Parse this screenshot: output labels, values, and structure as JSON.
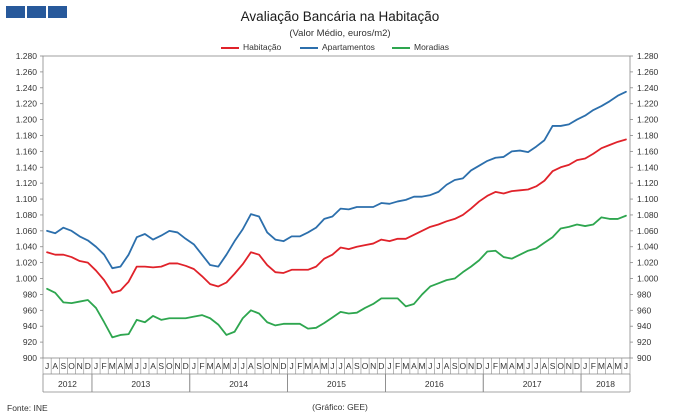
{
  "logo_color": "#27599b",
  "footer": {
    "source": "Fonte: INE",
    "credit": "(Gráfico: GEE)"
  },
  "chart_data": {
    "type": "line",
    "title": "Avaliação Bancária na Habitação",
    "subtitle": "(Valor Médio, euros/m2)",
    "ylim": [
      900,
      1280
    ],
    "yticks": [
      900,
      920,
      940,
      960,
      980,
      1000,
      1020,
      1040,
      1060,
      1080,
      1100,
      1120,
      1140,
      1160,
      1180,
      1200,
      1220,
      1240,
      1260,
      1280
    ],
    "ytick_labels": [
      "900",
      "920",
      "940",
      "960",
      "980",
      "1.000",
      "1.020",
      "1.040",
      "1.060",
      "1.080",
      "1.100",
      "1.120",
      "1.140",
      "1.160",
      "1.180",
      "1.200",
      "1.220",
      "1.240",
      "1.260",
      "1.280"
    ],
    "months": [
      "J",
      "A",
      "S",
      "O",
      "N",
      "D",
      "J",
      "F",
      "M",
      "A",
      "M",
      "J",
      "J",
      "A",
      "S",
      "O",
      "N",
      "D",
      "J",
      "F",
      "M",
      "A",
      "M",
      "J",
      "J",
      "A",
      "S",
      "O",
      "N",
      "D",
      "J",
      "F",
      "M",
      "A",
      "M",
      "J",
      "J",
      "A",
      "S",
      "O",
      "N",
      "D",
      "J",
      "F",
      "M",
      "A",
      "M",
      "J",
      "J",
      "A",
      "S",
      "O",
      "N",
      "D",
      "J",
      "F",
      "M",
      "A",
      "M",
      "J",
      "J",
      "A",
      "S",
      "O",
      "N",
      "D",
      "J",
      "F",
      "M",
      "A",
      "M",
      "J"
    ],
    "years": [
      {
        "label": "2012",
        "start": 0,
        "count": 6
      },
      {
        "label": "2013",
        "start": 6,
        "count": 12
      },
      {
        "label": "2014",
        "start": 18,
        "count": 12
      },
      {
        "label": "2015",
        "start": 30,
        "count": 12
      },
      {
        "label": "2016",
        "start": 42,
        "count": 12
      },
      {
        "label": "2017",
        "start": 54,
        "count": 12
      },
      {
        "label": "2018",
        "start": 66,
        "count": 6
      }
    ],
    "series": [
      {
        "name": "Habitação",
        "color": "#e0222a",
        "values": [
          1033,
          1030,
          1030,
          1027,
          1022,
          1020,
          1010,
          998,
          982,
          985,
          996,
          1015,
          1015,
          1014,
          1015,
          1019,
          1019,
          1016,
          1012,
          1003,
          993,
          990,
          995,
          1006,
          1018,
          1033,
          1030,
          1017,
          1008,
          1007,
          1011,
          1011,
          1011,
          1015,
          1025,
          1030,
          1039,
          1037,
          1040,
          1042,
          1044,
          1049,
          1047,
          1050,
          1050,
          1055,
          1060,
          1065,
          1068,
          1072,
          1075,
          1080,
          1088,
          1097,
          1104,
          1109,
          1107,
          1110,
          1111,
          1112,
          1116,
          1123,
          1135,
          1140,
          1143,
          1149,
          1151,
          1157,
          1164,
          1168,
          1172,
          1175
        ]
      },
      {
        "name": "Apartamentos",
        "color": "#2c6fac",
        "values": [
          1060,
          1057,
          1064,
          1060,
          1053,
          1048,
          1040,
          1030,
          1013,
          1015,
          1030,
          1052,
          1056,
          1049,
          1054,
          1060,
          1058,
          1050,
          1043,
          1030,
          1017,
          1015,
          1030,
          1047,
          1062,
          1081,
          1078,
          1058,
          1049,
          1047,
          1053,
          1053,
          1058,
          1064,
          1075,
          1078,
          1088,
          1087,
          1090,
          1090,
          1090,
          1095,
          1094,
          1097,
          1099,
          1103,
          1103,
          1105,
          1109,
          1118,
          1124,
          1126,
          1136,
          1142,
          1148,
          1152,
          1153,
          1160,
          1161,
          1159,
          1166,
          1174,
          1192,
          1192,
          1194,
          1200,
          1205,
          1212,
          1217,
          1223,
          1230,
          1235
        ]
      },
      {
        "name": "Moradias",
        "color": "#2ea64f",
        "values": [
          987,
          982,
          970,
          969,
          971,
          973,
          963,
          945,
          926,
          929,
          930,
          948,
          945,
          953,
          948,
          950,
          950,
          950,
          952,
          954,
          950,
          942,
          929,
          933,
          950,
          960,
          956,
          945,
          941,
          943,
          943,
          943,
          937,
          938,
          944,
          951,
          958,
          956,
          957,
          963,
          968,
          975,
          975,
          975,
          965,
          968,
          980,
          990,
          994,
          998,
          1000,
          1008,
          1015,
          1023,
          1034,
          1035,
          1027,
          1025,
          1030,
          1035,
          1038,
          1045,
          1052,
          1063,
          1065,
          1068,
          1066,
          1068,
          1077,
          1075,
          1075,
          1079
        ]
      }
    ]
  }
}
